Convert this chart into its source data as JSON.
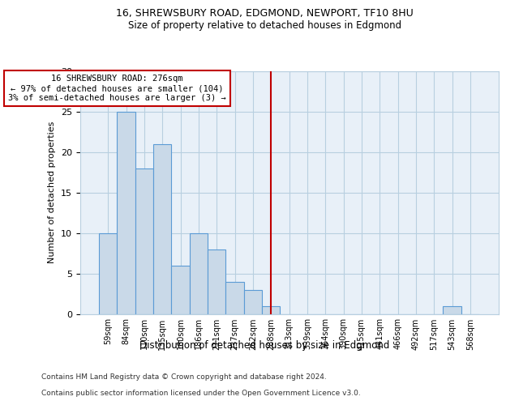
{
  "title1": "16, SHREWSBURY ROAD, EDGMOND, NEWPORT, TF10 8HU",
  "title2": "Size of property relative to detached houses in Edgmond",
  "xlabel": "Distribution of detached houses by size in Edgmond",
  "ylabel": "Number of detached properties",
  "footnote1": "Contains HM Land Registry data © Crown copyright and database right 2024.",
  "footnote2": "Contains public sector information licensed under the Open Government Licence v3.0.",
  "bin_labels": [
    "59sqm",
    "84sqm",
    "110sqm",
    "135sqm",
    "160sqm",
    "186sqm",
    "211sqm",
    "237sqm",
    "262sqm",
    "288sqm",
    "313sqm",
    "339sqm",
    "364sqm",
    "390sqm",
    "415sqm",
    "441sqm",
    "466sqm",
    "492sqm",
    "517sqm",
    "543sqm",
    "568sqm"
  ],
  "bar_heights": [
    10,
    25,
    18,
    21,
    6,
    10,
    8,
    4,
    3,
    1,
    0,
    0,
    0,
    0,
    0,
    0,
    0,
    0,
    0,
    1,
    0
  ],
  "bar_color": "#c9d9e8",
  "bar_edge_color": "#5b9bd5",
  "vline_x_index": 9.0,
  "vline_color": "#c00000",
  "annotation_line1": "16 SHREWSBURY ROAD: 276sqm",
  "annotation_line2": "← 97% of detached houses are smaller (104)",
  "annotation_line3": "3% of semi-detached houses are larger (3) →",
  "annotation_box_color": "#c00000",
  "ylim": [
    0,
    30
  ],
  "yticks": [
    0,
    5,
    10,
    15,
    20,
    25,
    30
  ],
  "grid_color": "#b8cfe0",
  "bg_color": "#e8f0f8",
  "fig_bg_color": "#ffffff"
}
